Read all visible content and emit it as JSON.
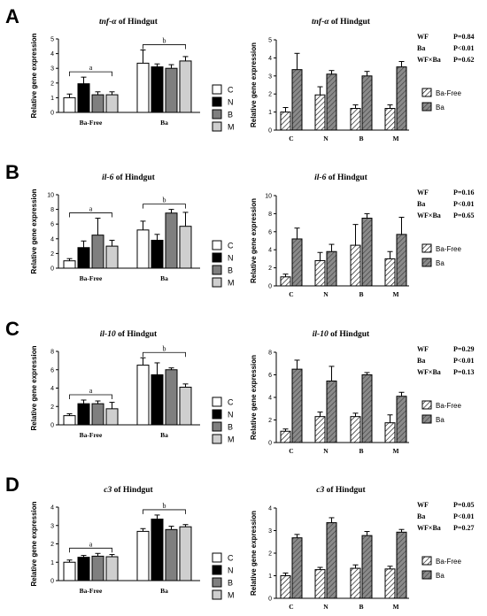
{
  "legend_groups": [
    "C",
    "N",
    "B",
    "M"
  ],
  "legend_conditions": [
    "Ba-Free",
    "Ba"
  ],
  "colors": {
    "C": "#ffffff",
    "N": "#000000",
    "B": "#7f7f7f",
    "M": "#cfcfcf",
    "BaFree_hatch": "#ffffff",
    "Ba_fill": "#8a8a8a"
  },
  "stats_labels": [
    "WF",
    "Ba",
    "WF×Ba"
  ],
  "ylabel": "Relative gene expression",
  "chart_data": [
    {
      "panel": "A",
      "gene": "tnf-α",
      "title_suffix": " of Hindgut",
      "type": "bar",
      "ylim": [
        0,
        5
      ],
      "yticks": [
        0,
        1,
        2,
        3,
        4,
        5
      ],
      "conditions": [
        "Ba-Free",
        "Ba"
      ],
      "groups": [
        "C",
        "N",
        "B",
        "M"
      ],
      "series": [
        {
          "condition": "Ba-Free",
          "values": [
            1.0,
            1.95,
            1.2,
            1.2
          ],
          "errors": [
            0.25,
            0.45,
            0.2,
            0.2
          ]
        },
        {
          "condition": "Ba",
          "values": [
            3.35,
            3.1,
            3.0,
            3.5
          ],
          "errors": [
            0.9,
            0.2,
            0.25,
            0.3
          ]
        }
      ],
      "sig_letters": [
        "a",
        "b"
      ],
      "stats": [
        "P=0.84",
        "P<0.01",
        "P=0.62"
      ]
    },
    {
      "panel": "B",
      "gene": "il-6",
      "title_suffix": " of Hindgut",
      "type": "bar",
      "ylim": [
        0,
        10
      ],
      "yticks": [
        0,
        2,
        4,
        6,
        8,
        10
      ],
      "conditions": [
        "Ba-Free",
        "Ba"
      ],
      "groups": [
        "C",
        "N",
        "B",
        "M"
      ],
      "series": [
        {
          "condition": "Ba-Free",
          "values": [
            1.0,
            2.8,
            4.5,
            3.0
          ],
          "errors": [
            0.3,
            0.9,
            2.3,
            0.8
          ]
        },
        {
          "condition": "Ba",
          "values": [
            5.2,
            3.8,
            7.5,
            5.7
          ],
          "errors": [
            1.2,
            0.8,
            0.5,
            1.9
          ]
        }
      ],
      "sig_letters": [
        "a",
        "b"
      ],
      "stats": [
        "P=0.16",
        "P<0.01",
        "P=0.65"
      ]
    },
    {
      "panel": "C",
      "gene": "il-10",
      "title_suffix": " of Hindgut",
      "type": "bar",
      "ylim": [
        0,
        8
      ],
      "yticks": [
        0,
        2,
        4,
        6,
        8
      ],
      "conditions": [
        "Ba-Free",
        "Ba"
      ],
      "groups": [
        "C",
        "N",
        "B",
        "M"
      ],
      "series": [
        {
          "condition": "Ba-Free",
          "values": [
            1.0,
            2.3,
            2.3,
            1.75
          ],
          "errors": [
            0.2,
            0.4,
            0.3,
            0.7
          ]
        },
        {
          "condition": "Ba",
          "values": [
            6.5,
            5.45,
            6.0,
            4.1
          ],
          "errors": [
            0.8,
            1.3,
            0.2,
            0.35
          ]
        }
      ],
      "sig_letters": [
        "a",
        "b"
      ],
      "stats": [
        "P=0.29",
        "P<0.01",
        "P=0.13"
      ]
    },
    {
      "panel": "D",
      "gene": "c3",
      "title_suffix": " of Hindgut",
      "type": "bar",
      "ylim": [
        0,
        4
      ],
      "yticks": [
        0,
        1,
        2,
        3,
        4
      ],
      "conditions": [
        "Ba-Free",
        "Ba"
      ],
      "groups": [
        "C",
        "N",
        "B",
        "M"
      ],
      "series": [
        {
          "condition": "Ba-Free",
          "values": [
            1.0,
            1.27,
            1.33,
            1.3
          ],
          "errors": [
            0.12,
            0.1,
            0.15,
            0.12
          ]
        },
        {
          "condition": "Ba",
          "values": [
            2.68,
            3.35,
            2.78,
            2.93
          ],
          "errors": [
            0.15,
            0.22,
            0.18,
            0.12
          ]
        }
      ],
      "sig_letters": [
        "a",
        "b"
      ],
      "stats": [
        "P=0.05",
        "P<0.01",
        "P=0.27"
      ]
    }
  ]
}
